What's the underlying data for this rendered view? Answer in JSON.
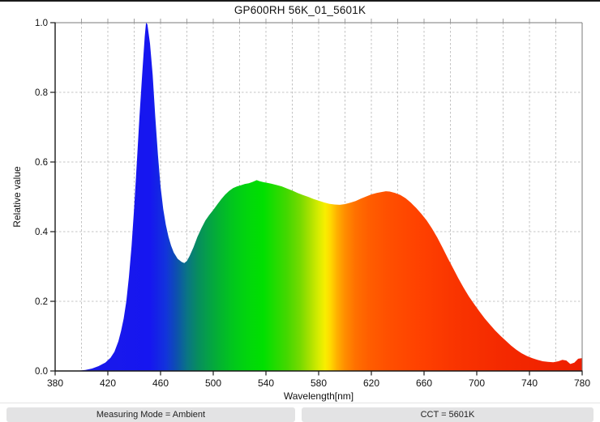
{
  "header": {
    "title": "GP600RH 56K_01_5601K"
  },
  "footer": {
    "measuring_mode_label": "Measuring Mode = Ambient",
    "cct_label": "CCT = 5601K"
  },
  "chart_data": {
    "type": "area",
    "title": "GP600RH 56K_01_5601K",
    "xlabel": "Wavelength[nm]",
    "ylabel": "Relative value",
    "xlim": [
      380,
      780
    ],
    "ylim": [
      0.0,
      1.0
    ],
    "x_ticks": [
      380,
      420,
      460,
      500,
      540,
      580,
      620,
      660,
      700,
      740,
      780
    ],
    "y_tick_values": [
      0.0,
      0.2,
      0.4,
      0.6,
      0.8,
      1.0
    ],
    "y_tick_labels": [
      "0.0",
      "0.2",
      "0.4",
      "0.6",
      "0.8",
      "1.0"
    ],
    "grid": {
      "style": "dashed",
      "color": "#b3b3b3",
      "x_step_nm": 20,
      "y_step": 0.2
    },
    "axis_color": "#1a1a1a",
    "box_color": "#7a7a7a",
    "fill": "spectral-wavelength-gradient",
    "gradient_stops": [
      [
        380,
        "#1b1be6"
      ],
      [
        452,
        "#1616f0"
      ],
      [
        464,
        "#1233dc"
      ],
      [
        472,
        "#0d4fb0"
      ],
      [
        480,
        "#0a7486"
      ],
      [
        488,
        "#078c60"
      ],
      [
        496,
        "#05a048"
      ],
      [
        506,
        "#03b52e"
      ],
      [
        516,
        "#01c91a"
      ],
      [
        528,
        "#01d80a"
      ],
      [
        538,
        "#00e000"
      ],
      [
        546,
        "#1edc00"
      ],
      [
        556,
        "#44d800"
      ],
      [
        566,
        "#76da00"
      ],
      [
        574,
        "#aee200"
      ],
      [
        580,
        "#d8ec00"
      ],
      [
        585,
        "#f8ee00"
      ],
      [
        589,
        "#ffd800"
      ],
      [
        594,
        "#ffb000"
      ],
      [
        600,
        "#ff8d00"
      ],
      [
        608,
        "#ff7000"
      ],
      [
        618,
        "#ff5e00"
      ],
      [
        632,
        "#ff5000"
      ],
      [
        655,
        "#ff4200"
      ],
      [
        685,
        "#f93400"
      ],
      [
        720,
        "#f42900"
      ],
      [
        780,
        "#ee1e00"
      ]
    ],
    "series": [
      {
        "name": "spectral power distribution",
        "points": [
          [
            380,
            0
          ],
          [
            392,
            0
          ],
          [
            398,
            0.001
          ],
          [
            403,
            0.003
          ],
          [
            408,
            0.007
          ],
          [
            413,
            0.014
          ],
          [
            418,
            0.024
          ],
          [
            422,
            0.038
          ],
          [
            425,
            0.055
          ],
          [
            428,
            0.085
          ],
          [
            430,
            0.115
          ],
          [
            432,
            0.15
          ],
          [
            434,
            0.2
          ],
          [
            436,
            0.27
          ],
          [
            438,
            0.36
          ],
          [
            440,
            0.47
          ],
          [
            442,
            0.6
          ],
          [
            444,
            0.73
          ],
          [
            446,
            0.85
          ],
          [
            448,
            0.96
          ],
          [
            449,
            1.0
          ],
          [
            450,
            0.995
          ],
          [
            452,
            0.94
          ],
          [
            454,
            0.85
          ],
          [
            456,
            0.73
          ],
          [
            458,
            0.62
          ],
          [
            460,
            0.53
          ],
          [
            462,
            0.465
          ],
          [
            464,
            0.42
          ],
          [
            466,
            0.385
          ],
          [
            468,
            0.36
          ],
          [
            470,
            0.34
          ],
          [
            473,
            0.322
          ],
          [
            476,
            0.313
          ],
          [
            478,
            0.31
          ],
          [
            480,
            0.316
          ],
          [
            482,
            0.33
          ],
          [
            485,
            0.355
          ],
          [
            488,
            0.385
          ],
          [
            491,
            0.41
          ],
          [
            494,
            0.432
          ],
          [
            497,
            0.448
          ],
          [
            500,
            0.462
          ],
          [
            503,
            0.478
          ],
          [
            506,
            0.493
          ],
          [
            509,
            0.506
          ],
          [
            512,
            0.517
          ],
          [
            515,
            0.525
          ],
          [
            518,
            0.53
          ],
          [
            521,
            0.533
          ],
          [
            524,
            0.537
          ],
          [
            527,
            0.539
          ],
          [
            530,
            0.543
          ],
          [
            533,
            0.548
          ],
          [
            535,
            0.545
          ],
          [
            538,
            0.542
          ],
          [
            541,
            0.54
          ],
          [
            544,
            0.538
          ],
          [
            548,
            0.534
          ],
          [
            552,
            0.53
          ],
          [
            556,
            0.524
          ],
          [
            560,
            0.518
          ],
          [
            564,
            0.511
          ],
          [
            568,
            0.505
          ],
          [
            572,
            0.5
          ],
          [
            576,
            0.494
          ],
          [
            580,
            0.489
          ],
          [
            584,
            0.484
          ],
          [
            588,
            0.48
          ],
          [
            592,
            0.478
          ],
          [
            596,
            0.477
          ],
          [
            600,
            0.479
          ],
          [
            604,
            0.483
          ],
          [
            608,
            0.488
          ],
          [
            612,
            0.495
          ],
          [
            616,
            0.501
          ],
          [
            620,
            0.507
          ],
          [
            624,
            0.511
          ],
          [
            628,
            0.514
          ],
          [
            631,
            0.516
          ],
          [
            634,
            0.515
          ],
          [
            638,
            0.511
          ],
          [
            642,
            0.505
          ],
          [
            646,
            0.496
          ],
          [
            650,
            0.483
          ],
          [
            654,
            0.468
          ],
          [
            658,
            0.451
          ],
          [
            662,
            0.432
          ],
          [
            666,
            0.409
          ],
          [
            670,
            0.383
          ],
          [
            674,
            0.354
          ],
          [
            678,
            0.324
          ],
          [
            682,
            0.295
          ],
          [
            686,
            0.266
          ],
          [
            690,
            0.239
          ],
          [
            694,
            0.214
          ],
          [
            698,
            0.192
          ],
          [
            702,
            0.171
          ],
          [
            706,
            0.151
          ],
          [
            710,
            0.133
          ],
          [
            714,
            0.116
          ],
          [
            718,
            0.101
          ],
          [
            722,
            0.087
          ],
          [
            726,
            0.073
          ],
          [
            730,
            0.061
          ],
          [
            734,
            0.051
          ],
          [
            738,
            0.043
          ],
          [
            742,
            0.037
          ],
          [
            746,
            0.032
          ],
          [
            750,
            0.028
          ],
          [
            754,
            0.026
          ],
          [
            758,
            0.025
          ],
          [
            762,
            0.028
          ],
          [
            765,
            0.032
          ],
          [
            768,
            0.03
          ],
          [
            771,
            0.02
          ],
          [
            774,
            0.024
          ],
          [
            777,
            0.035
          ],
          [
            780,
            0.037
          ]
        ]
      }
    ]
  }
}
